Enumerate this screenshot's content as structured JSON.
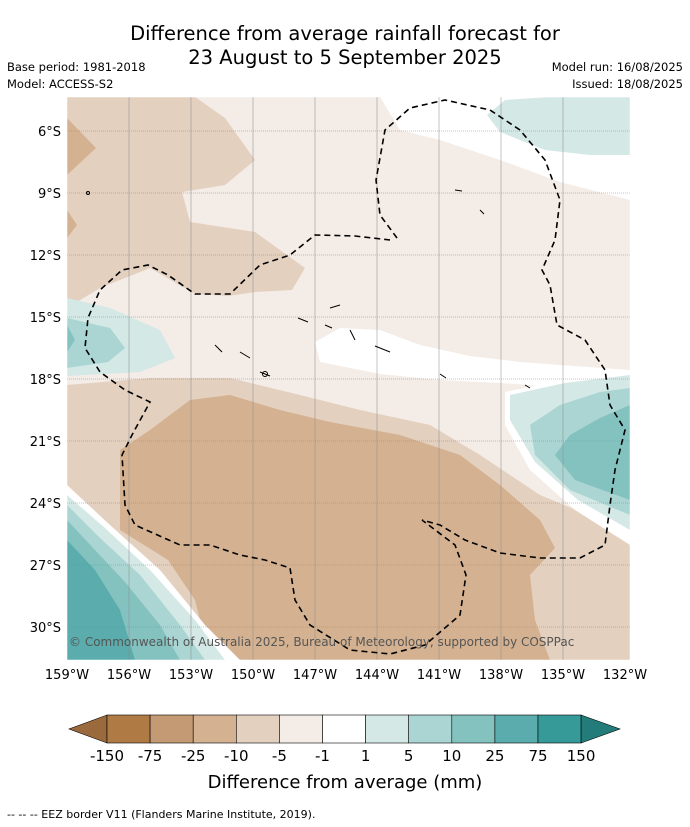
{
  "title": {
    "line1": "Difference from average rainfall forecast for",
    "line2": "23 August to 5 September 2025"
  },
  "meta_left": {
    "base_period": "Base period: 1981-2018",
    "model": "Model: ACCESS-S2"
  },
  "meta_right": {
    "model_run": "Model run: 16/08/2025",
    "issued": "Issued: 18/08/2025"
  },
  "copyright": "© Commonwealth of Australia 2025, Bureau of Meteorology, supported by COSPPac",
  "axes": {
    "lon_labels": [
      "159°W",
      "156°W",
      "153°W",
      "150°W",
      "147°W",
      "144°W",
      "141°W",
      "138°W",
      "135°W",
      "132°W"
    ],
    "lat_labels": [
      "6°S",
      "9°S",
      "12°S",
      "15°S",
      "18°S",
      "21°S",
      "24°S",
      "27°S",
      "30°S"
    ]
  },
  "legend": {
    "title": "Difference from average (mm)",
    "labels": [
      "-150",
      "-75",
      "-25",
      "-10",
      "-5",
      "-1",
      "1",
      "5",
      "10",
      "25",
      "75",
      "150"
    ],
    "colors": [
      "#9a6a3c",
      "#b07a45",
      "#c39a73",
      "#d4b291",
      "#e3d0bf",
      "#f4ece7",
      "#ffffff",
      "#d4e8e6",
      "#aad5d3",
      "#84c2c0",
      "#5aadac",
      "#359a98",
      "#237c7a"
    ]
  },
  "footer": "--  --  -- EEZ border V11 (Flanders Marine Institute, 2019)."
}
